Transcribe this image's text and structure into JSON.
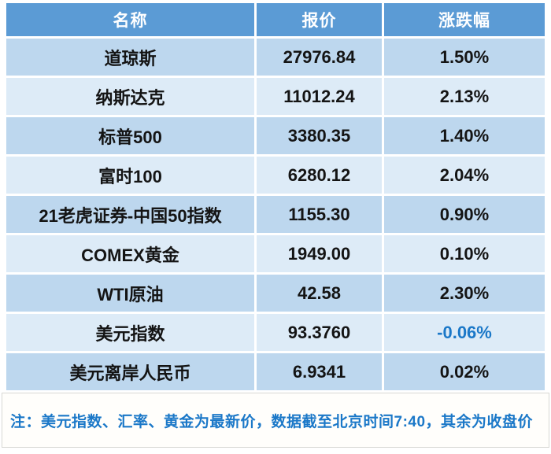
{
  "chart_data": {
    "type": "table",
    "columns": [
      "名称",
      "报价",
      "涨跌幅"
    ],
    "rows": [
      [
        "道琼斯",
        "27976.84",
        "1.50%"
      ],
      [
        "纳斯达克",
        "11012.24",
        "2.13%"
      ],
      [
        "标普500",
        "3380.35",
        "1.40%"
      ],
      [
        "富时100",
        "6280.12",
        "2.04%"
      ],
      [
        "21老虎证券-中国50指数",
        "1155.30",
        "0.90%"
      ],
      [
        "COMEX黄金",
        "1949.00",
        "0.10%"
      ],
      [
        "WTI原油",
        "42.58",
        "2.30%"
      ],
      [
        "美元指数",
        "93.3760",
        "-0.06%"
      ],
      [
        "美元离岸人民币",
        "6.9341",
        "0.02%"
      ]
    ],
    "note": "注：美元指数、汇率、黄金为最新价，数据截至北京时间7:40，其余为收盘价"
  },
  "colors": {
    "header_bg": "#5b9bd5",
    "row_odd_bg": "#bdd7ee",
    "row_even_bg": "#ddebf7",
    "header_text": "#ffffff",
    "cell_text": "#141414",
    "negative_text": "#1b78c8",
    "note_text": "#1b78c8"
  }
}
